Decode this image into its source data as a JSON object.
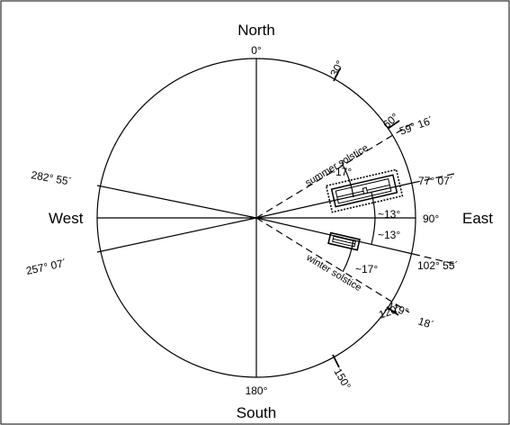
{
  "diagram": {
    "cardinals": {
      "north": "North",
      "south": "South",
      "east": "East",
      "west": "West"
    },
    "circle_ticks": {
      "t0": "0°",
      "t30": "30°",
      "t60": "60°",
      "t90": "90°",
      "t120": "120°",
      "t150": "150°",
      "t180": "180°"
    },
    "bearings": {
      "b59": "59° 16´",
      "b77": "77° 07´",
      "b102": "102° 55´",
      "b119": "119°",
      "b120_18": "18´",
      "b282": "282° 55´",
      "b257": "257° 07´"
    },
    "angles": {
      "a17_top": "~17°",
      "a13_top": "~13°",
      "a13_bottom": "~13°",
      "a17_bottom": "~17°"
    },
    "annotations": {
      "summer": "summer solstice",
      "winter": "winter solstice"
    }
  }
}
